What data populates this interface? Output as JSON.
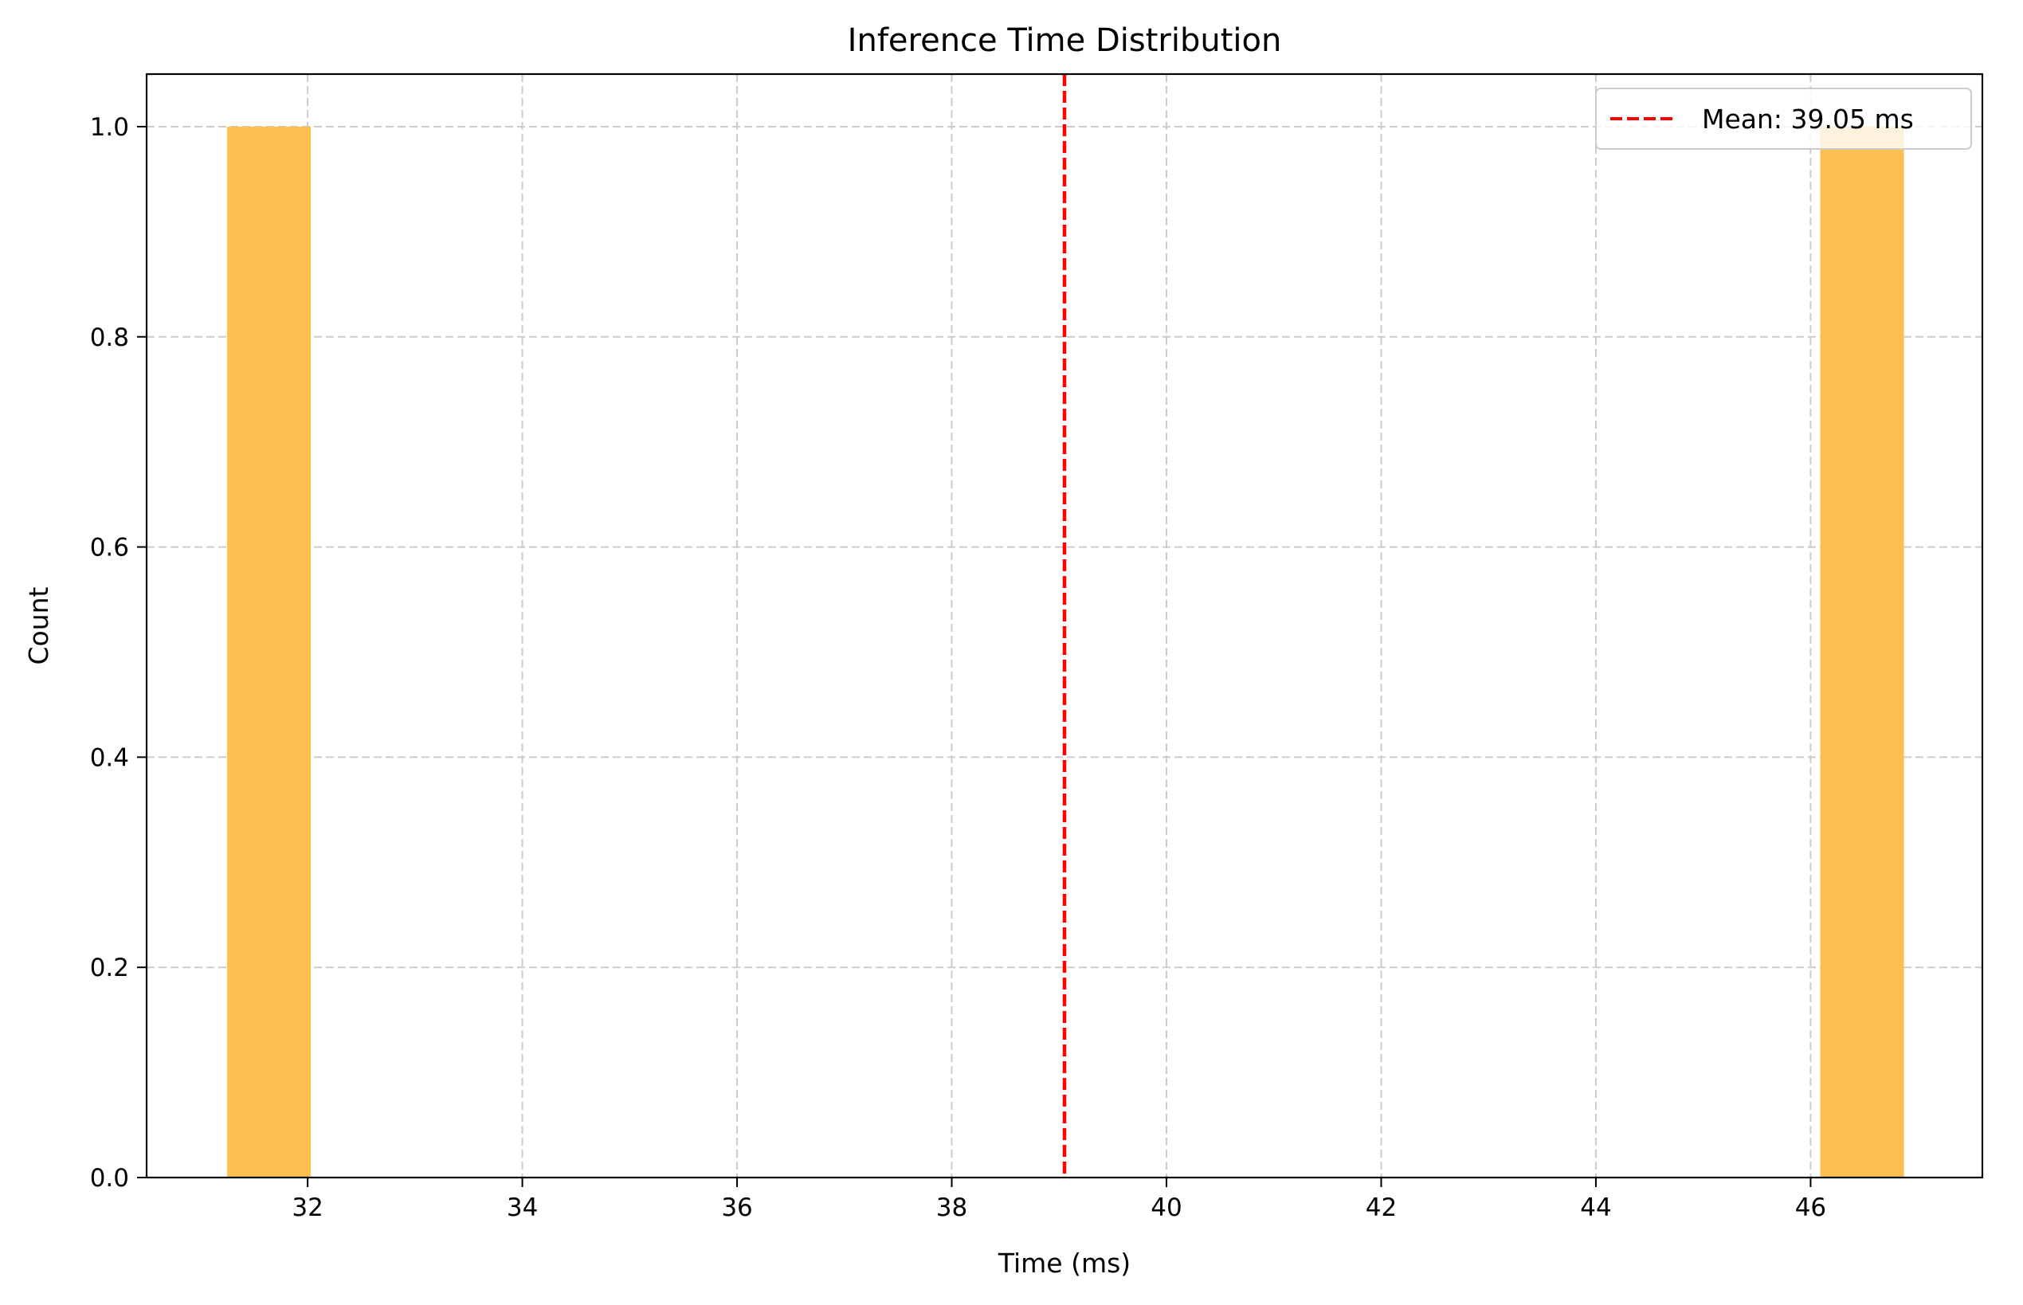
{
  "chart_data": {
    "type": "bar",
    "title": "Inference Time Distribution",
    "xlabel": "Time (ms)",
    "ylabel": "Count",
    "xlim": [
      30.5,
      47.6
    ],
    "ylim": [
      0,
      1.05
    ],
    "x_ticks": [
      32,
      34,
      36,
      38,
      40,
      42,
      44,
      46
    ],
    "x_tick_labels": [
      "32",
      "34",
      "36",
      "38",
      "40",
      "42",
      "44",
      "46"
    ],
    "y_ticks": [
      0.0,
      0.2,
      0.4,
      0.6,
      0.8,
      1.0
    ],
    "y_tick_labels": [
      "0.0",
      "0.2",
      "0.4",
      "0.6",
      "0.8",
      "1.0"
    ],
    "bins": [
      {
        "x0": 31.25,
        "x1": 32.03,
        "count": 1
      },
      {
        "x0": 46.09,
        "x1": 46.87,
        "count": 1
      }
    ],
    "bar_color": "#ffbf50",
    "mean_line": {
      "value": 39.05,
      "label": "Mean: 39.05 ms",
      "color": "#ff0000",
      "style": "dashed"
    },
    "grid": true,
    "legend_position": "top-right"
  }
}
